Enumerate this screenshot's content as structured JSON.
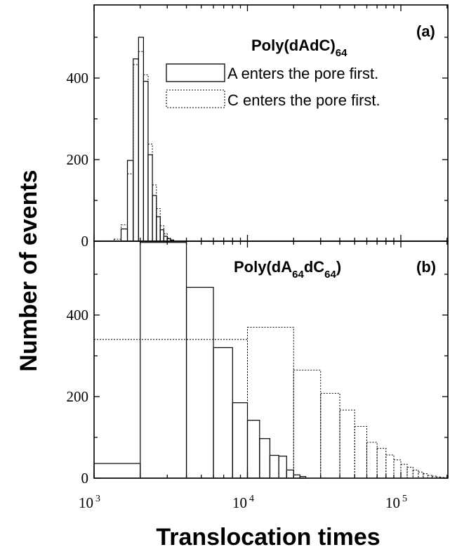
{
  "chart_data": {
    "type": "bar",
    "xlabel": "Translocation times",
    "ylabel": "Number of events",
    "x_scale": "log",
    "xlim": [
      1000,
      200000
    ],
    "x_ticks": [
      {
        "base": "10",
        "exp": "3"
      },
      {
        "base": "10",
        "exp": "4"
      },
      {
        "base": "10",
        "exp": "5"
      }
    ],
    "panels": [
      {
        "label": "(a)",
        "title_main": "Poly(dAdC)",
        "title_sub": "64",
        "ylim": [
          0,
          580
        ],
        "y_ticks": [
          "0",
          "200",
          "400"
        ],
        "legend_position": "top-right",
        "series": [
          {
            "name": "A enters the pore first.",
            "style": "solid",
            "bins": [
              {
                "x0": 1500,
                "x1": 1650,
                "y": 30
              },
              {
                "x0": 1650,
                "x1": 1800,
                "y": 198
              },
              {
                "x0": 1800,
                "x1": 1950,
                "y": 447
              },
              {
                "x0": 1950,
                "x1": 2100,
                "y": 500
              },
              {
                "x0": 2100,
                "x1": 2250,
                "y": 392
              },
              {
                "x0": 2250,
                "x1": 2400,
                "y": 212
              },
              {
                "x0": 2400,
                "x1": 2550,
                "y": 112
              },
              {
                "x0": 2550,
                "x1": 2700,
                "y": 60
              },
              {
                "x0": 2700,
                "x1": 2850,
                "y": 28
              },
              {
                "x0": 2850,
                "x1": 3000,
                "y": 12
              },
              {
                "x0": 3000,
                "x1": 3150,
                "y": 6
              },
              {
                "x0": 3150,
                "x1": 3300,
                "y": 3
              }
            ]
          },
          {
            "name": "C enters the pore first.",
            "style": "dotted",
            "bins": [
              {
                "x0": 1350,
                "x1": 1500,
                "y": 5
              },
              {
                "x0": 1500,
                "x1": 1650,
                "y": 40
              },
              {
                "x0": 1650,
                "x1": 1800,
                "y": 165
              },
              {
                "x0": 1800,
                "x1": 1950,
                "y": 433
              },
              {
                "x0": 1950,
                "x1": 2100,
                "y": 465
              },
              {
                "x0": 2100,
                "x1": 2250,
                "y": 408
              },
              {
                "x0": 2250,
                "x1": 2400,
                "y": 238
              },
              {
                "x0": 2400,
                "x1": 2550,
                "y": 138
              },
              {
                "x0": 2550,
                "x1": 2700,
                "y": 80
              },
              {
                "x0": 2700,
                "x1": 2850,
                "y": 38
              },
              {
                "x0": 2850,
                "x1": 3000,
                "y": 18
              },
              {
                "x0": 3000,
                "x1": 3150,
                "y": 8
              },
              {
                "x0": 3150,
                "x1": 3300,
                "y": 3
              }
            ]
          }
        ]
      },
      {
        "label": "(b)",
        "title_main": "Poly(dA",
        "title_sub": "64",
        "title_mid": "dC",
        "title_sub2": "64",
        "title_end": ")",
        "ylim": [
          0,
          580
        ],
        "y_ticks": [
          "0",
          "200",
          "400"
        ],
        "series": [
          {
            "name": "A enters the pore first.",
            "style": "solid",
            "bins": [
              {
                "x0": 1000,
                "x1": 2000,
                "y": 36
              },
              {
                "x0": 2000,
                "x1": 4000,
                "y": 578
              },
              {
                "x0": 4000,
                "x1": 6000,
                "y": 468
              },
              {
                "x0": 6000,
                "x1": 8000,
                "y": 320
              },
              {
                "x0": 8000,
                "x1": 10000,
                "y": 185
              },
              {
                "x0": 10000,
                "x1": 12000,
                "y": 142
              },
              {
                "x0": 12000,
                "x1": 14000,
                "y": 97
              },
              {
                "x0": 14000,
                "x1": 16000,
                "y": 56
              },
              {
                "x0": 16000,
                "x1": 18000,
                "y": 54
              },
              {
                "x0": 18000,
                "x1": 20000,
                "y": 20
              },
              {
                "x0": 20000,
                "x1": 22000,
                "y": 8
              },
              {
                "x0": 22000,
                "x1": 24000,
                "y": 4
              }
            ]
          },
          {
            "name": "C enters the pore first.",
            "style": "dotted",
            "bins": [
              {
                "x0": 1000,
                "x1": 10000,
                "y": 340
              },
              {
                "x0": 10000,
                "x1": 20000,
                "y": 370
              },
              {
                "x0": 20000,
                "x1": 30000,
                "y": 265
              },
              {
                "x0": 30000,
                "x1": 40000,
                "y": 208
              },
              {
                "x0": 40000,
                "x1": 50000,
                "y": 167
              },
              {
                "x0": 50000,
                "x1": 60000,
                "y": 127
              },
              {
                "x0": 60000,
                "x1": 70000,
                "y": 88
              },
              {
                "x0": 70000,
                "x1": 80000,
                "y": 73
              },
              {
                "x0": 80000,
                "x1": 90000,
                "y": 57
              },
              {
                "x0": 90000,
                "x1": 100000,
                "y": 45
              },
              {
                "x0": 100000,
                "x1": 110000,
                "y": 34
              },
              {
                "x0": 110000,
                "x1": 120000,
                "y": 27
              },
              {
                "x0": 120000,
                "x1": 130000,
                "y": 20
              },
              {
                "x0": 130000,
                "x1": 140000,
                "y": 15
              },
              {
                "x0": 140000,
                "x1": 150000,
                "y": 11
              },
              {
                "x0": 150000,
                "x1": 160000,
                "y": 7
              },
              {
                "x0": 160000,
                "x1": 170000,
                "y": 5
              },
              {
                "x0": 170000,
                "x1": 180000,
                "y": 3
              },
              {
                "x0": 180000,
                "x1": 190000,
                "y": 2
              },
              {
                "x0": 190000,
                "x1": 200000,
                "y": 1
              }
            ]
          }
        ]
      }
    ]
  }
}
